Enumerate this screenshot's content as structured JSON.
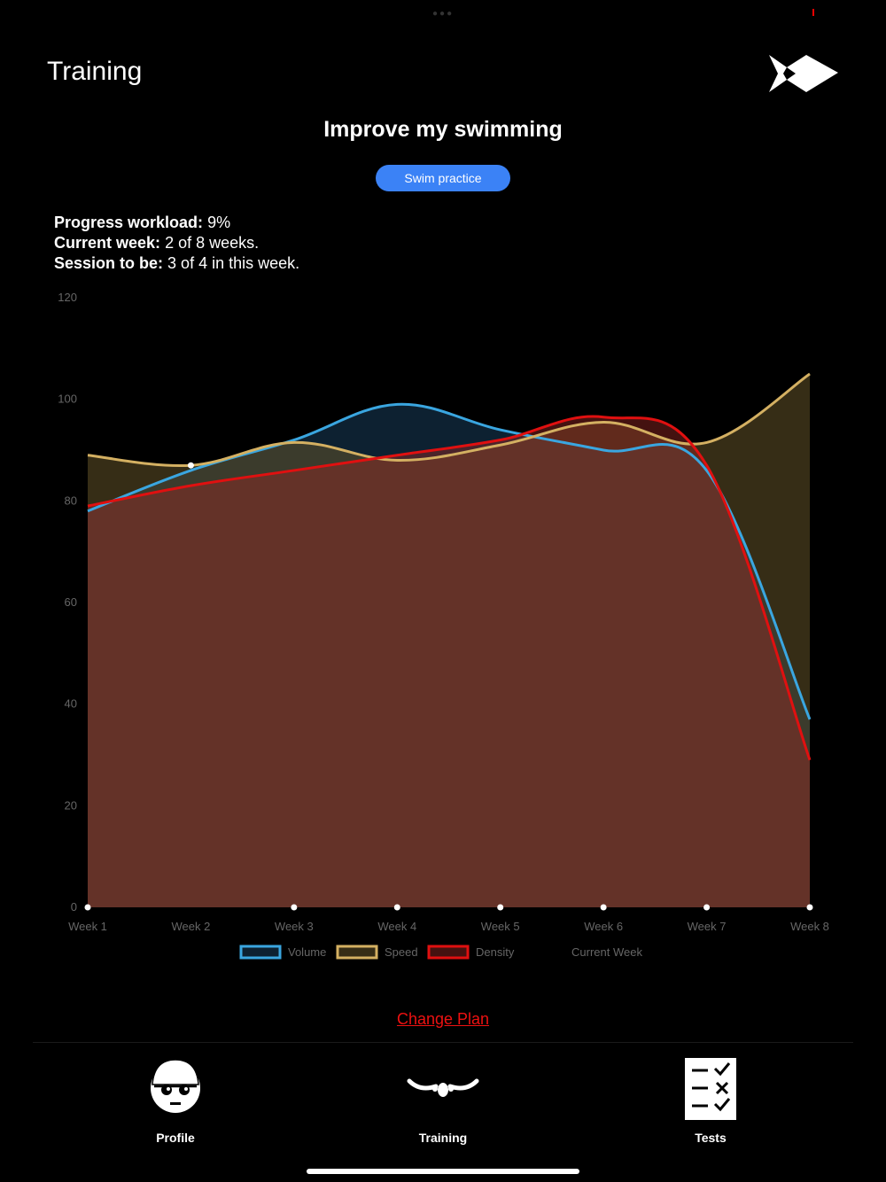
{
  "header": {
    "title": "Training"
  },
  "plan": {
    "title": "Improve my swimming",
    "activity_button": "Swim practice"
  },
  "stats": {
    "progress_label": "Progress workload:",
    "progress_value": "9%",
    "week_label": "Current week:",
    "week_value": "2 of 8 weeks.",
    "session_label": "Session to be:",
    "session_value": "3 of 4 in this week."
  },
  "chart_data": {
    "type": "area",
    "categories": [
      "Week 1",
      "Week 2",
      "Week 3",
      "Week 4",
      "Week 5",
      "Week 6",
      "Week 7",
      "Week 8"
    ],
    "ylim": [
      0,
      120
    ],
    "yticks": [
      0,
      20,
      40,
      60,
      80,
      100,
      120
    ],
    "current_week_index": 1,
    "series": [
      {
        "name": "Volume",
        "color": "#3aa6e0",
        "fill": "rgba(24,60,90,0.55)",
        "values": [
          78,
          86,
          92,
          99,
          94,
          90,
          86,
          37
        ]
      },
      {
        "name": "Speed",
        "color": "#d4b062",
        "fill": "rgba(98,82,40,0.55)",
        "values": [
          89,
          87,
          91.5,
          88,
          91,
          95.5,
          91.5,
          105
        ]
      },
      {
        "name": "Density",
        "color": "#e01010",
        "fill": "rgba(150,40,35,0.45)",
        "values": [
          79,
          83,
          86,
          89,
          92,
          96.5,
          87,
          29
        ]
      }
    ],
    "legend": [
      "Volume",
      "Speed",
      "Density",
      "Current Week"
    ]
  },
  "footer": {
    "change_plan": "Change Plan"
  },
  "tabs": [
    {
      "label": "Profile",
      "icon": "swimmer-cap-icon"
    },
    {
      "label": "Training",
      "icon": "swim-stroke-icon"
    },
    {
      "label": "Tests",
      "icon": "checklist-icon"
    }
  ]
}
